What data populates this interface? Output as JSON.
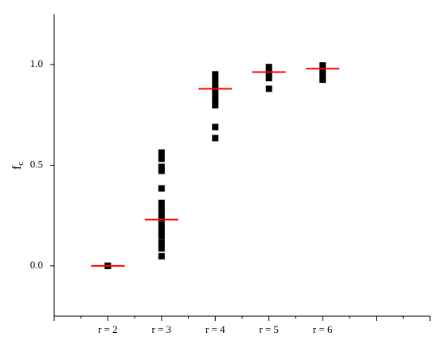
{
  "chart_data": {
    "type": "scatter",
    "ylabel": "f",
    "ylabel_subscript": "c",
    "categories": [
      null,
      "r = 2",
      "r = 3",
      "r = 4",
      "r = 5",
      "r = 6",
      null,
      null
    ],
    "series": [
      {
        "color": "#000000",
        "marker": "square",
        "values": [
          null,
          [
            0,
            0,
            0
          ],
          [
            0.563,
            0.532,
            0.492,
            0.472,
            0.385,
            0.313,
            0.282,
            0.262,
            0.234,
            0.202,
            0.175,
            0.147,
            0.115,
            0.087,
            0.048
          ],
          [
            0.952,
            0.929,
            0.9,
            0.877,
            0.849,
            0.821,
            0.798,
            0.69,
            0.635
          ],
          [
            0.988,
            0.96,
            0.933,
            0.88
          ],
          [
            0.996,
            0.968,
            0.94,
            0.925
          ],
          null,
          null
        ]
      },
      {
        "color": "#ff0000",
        "marker": "hline",
        "values": [
          null,
          0,
          0.23,
          0.88,
          0.963,
          0.98,
          null,
          null
        ]
      }
    ],
    "ylim": [
      -0.25,
      1.25
    ],
    "yticks": [
      {
        "value": 0,
        "label": "0.0"
      },
      0.5,
      {
        "value": 1,
        "label": "1.0"
      }
    ]
  }
}
